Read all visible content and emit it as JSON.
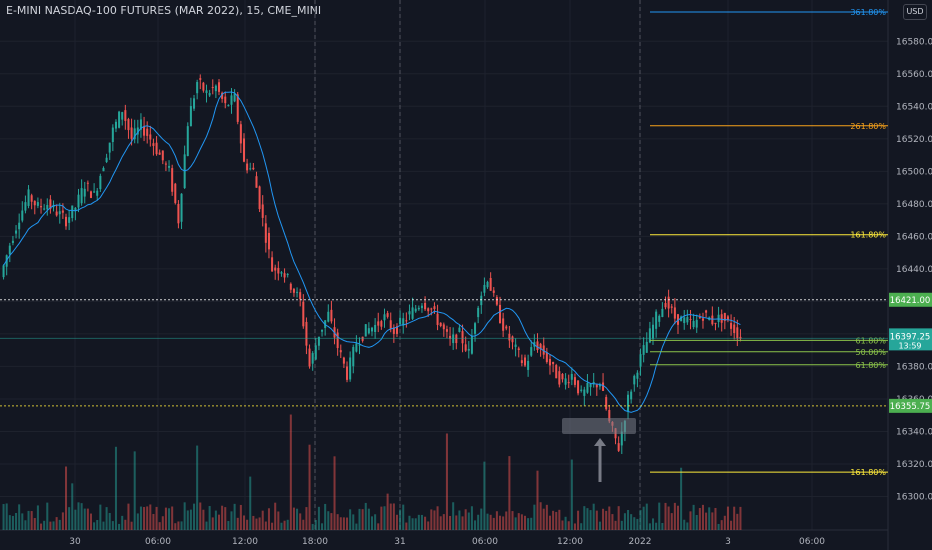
{
  "header": {
    "title": "E-MINI NASDAQ-100 FUTURES (MAR 2022), 15, CME_MINI",
    "currency_button": "USD"
  },
  "colors": {
    "background": "#131722",
    "up": "#26a69a",
    "down": "#ef5350",
    "ma_line": "#2196f3",
    "fib_orange": "#f7a21b",
    "fib_yellow": "#ffeb3b",
    "fib_green": "#8bc34a",
    "fib_blue": "#2196f3",
    "price_tag": "#4caf50"
  },
  "chart_data": {
    "type": "candlestick",
    "symbol": "E-MINI NASDAQ-100 FUTURES (MAR 2022)",
    "interval": "15",
    "exchange": "CME_MINI",
    "y_axis": {
      "ylim": [
        16288,
        16598
      ],
      "ticks": [
        16300,
        16320,
        16340,
        16360,
        16380,
        16400,
        16420,
        16440,
        16460,
        16480,
        16500,
        16520,
        16540,
        16560,
        16580
      ]
    },
    "x_axis": {
      "ticks": [
        "30",
        "06:00",
        "12:00",
        "18:00",
        "31",
        "06:00",
        "12:00",
        "2022",
        "3",
        "06:00"
      ],
      "session_breaks": [
        "Dec 30 18:00",
        "Dec 31 18:00",
        "Jan 2 18:00"
      ]
    },
    "ohlc_anchors": [
      [
        16435,
        0
      ],
      [
        16455,
        1
      ],
      [
        16472,
        2
      ],
      [
        16485,
        3
      ],
      [
        16478,
        4
      ],
      [
        16480,
        5
      ],
      [
        16475,
        6
      ],
      [
        16470,
        7
      ],
      [
        16478,
        8
      ],
      [
        16492,
        9
      ],
      [
        16485,
        10
      ],
      [
        16505,
        11
      ],
      [
        16525,
        12
      ],
      [
        16538,
        13
      ],
      [
        16520,
        14
      ],
      [
        16528,
        15
      ],
      [
        16520,
        16
      ],
      [
        16510,
        17
      ],
      [
        16500,
        18
      ],
      [
        16470,
        19
      ],
      [
        16530,
        20
      ],
      [
        16555,
        21
      ],
      [
        16548,
        22
      ],
      [
        16552,
        23
      ],
      [
        16540,
        24
      ],
      [
        16545,
        25
      ],
      [
        16505,
        26
      ],
      [
        16500,
        27
      ],
      [
        16470,
        28
      ],
      [
        16440,
        29
      ],
      [
        16440,
        30
      ],
      [
        16430,
        31
      ],
      [
        16420,
        32
      ],
      [
        16380,
        33
      ],
      [
        16400,
        34
      ],
      [
        16412,
        35
      ],
      [
        16392,
        36
      ],
      [
        16375,
        37
      ],
      [
        16395,
        38
      ],
      [
        16402,
        39
      ],
      [
        16405,
        40
      ],
      [
        16410,
        41
      ],
      [
        16402,
        42
      ],
      [
        16408,
        43
      ],
      [
        16414,
        44
      ],
      [
        16420,
        45
      ],
      [
        16415,
        46
      ],
      [
        16405,
        47
      ],
      [
        16395,
        48
      ],
      [
        16400,
        49
      ],
      [
        16388,
        50
      ],
      [
        16420,
        51
      ],
      [
        16435,
        52
      ],
      [
        16415,
        53
      ],
      [
        16400,
        54
      ],
      [
        16390,
        55
      ],
      [
        16380,
        56
      ],
      [
        16395,
        57
      ],
      [
        16388,
        58
      ],
      [
        16378,
        59
      ],
      [
        16370,
        60
      ],
      [
        16375,
        61
      ],
      [
        16362,
        62
      ],
      [
        16368,
        63
      ],
      [
        16370,
        64
      ],
      [
        16345,
        65
      ],
      [
        16330,
        66
      ],
      [
        16360,
        67
      ],
      [
        16380,
        68
      ],
      [
        16395,
        69
      ],
      [
        16410,
        70
      ],
      [
        16420,
        71
      ],
      [
        16410,
        72
      ],
      [
        16408,
        73
      ],
      [
        16406,
        74
      ],
      [
        16412,
        75
      ],
      [
        16408,
        76
      ],
      [
        16410,
        77
      ],
      [
        16405,
        78
      ],
      [
        16398,
        79
      ]
    ],
    "volume_relative": "shown as bars at bottom; spikes near 10:00 on Dec 30, 16:00 on Dec 30, 09:30 on Dec 31, 15:00 on Dec 31",
    "horizontal_lines": [
      {
        "price": 16421.0,
        "label": "16421.00",
        "style": "dotted",
        "color": "#ffffff"
      },
      {
        "price": 16355.75,
        "label": "16355.75",
        "style": "dotted",
        "color": "#ffeb3b"
      }
    ],
    "fib_levels": [
      {
        "label": "361.80%",
        "price": 16598,
        "color": "#2196f3"
      },
      {
        "label": "261.80%",
        "price": 16528,
        "color": "#f7a21b"
      },
      {
        "label": "161.80%",
        "price": 16461,
        "color": "#ffeb3b"
      },
      {
        "label": "61.80%",
        "price": 16396,
        "color": "#8bc34a"
      },
      {
        "label": "50.00%",
        "price": 16389,
        "color": "#8bc34a"
      },
      {
        "label": "61.80%",
        "price": 16381,
        "color": "#8bc34a"
      },
      {
        "label": "161.80%",
        "price": 16315,
        "color": "#ffeb3b"
      }
    ],
    "current_price": {
      "value": "16397.25",
      "countdown": "13:59"
    },
    "annotation_box": {
      "label": ""
    }
  }
}
